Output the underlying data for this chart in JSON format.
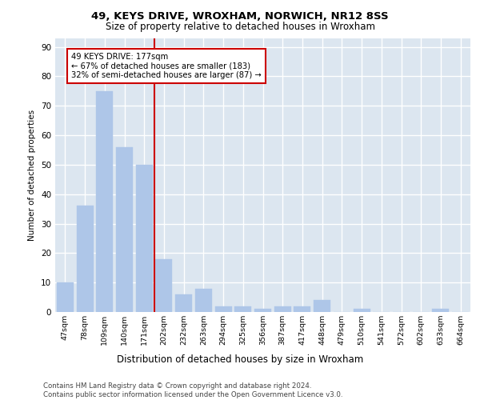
{
  "title1": "49, KEYS DRIVE, WROXHAM, NORWICH, NR12 8SS",
  "title2": "Size of property relative to detached houses in Wroxham",
  "xlabel": "Distribution of detached houses by size in Wroxham",
  "ylabel": "Number of detached properties",
  "bar_labels": [
    "47sqm",
    "78sqm",
    "109sqm",
    "140sqm",
    "171sqm",
    "202sqm",
    "232sqm",
    "263sqm",
    "294sqm",
    "325sqm",
    "356sqm",
    "387sqm",
    "417sqm",
    "448sqm",
    "479sqm",
    "510sqm",
    "541sqm",
    "572sqm",
    "602sqm",
    "633sqm",
    "664sqm"
  ],
  "bar_values": [
    10,
    36,
    75,
    56,
    50,
    18,
    6,
    8,
    2,
    2,
    1,
    2,
    2,
    4,
    0,
    1,
    0,
    0,
    0,
    1,
    0
  ],
  "bar_color": "#aec6e8",
  "bar_edge_color": "#aec6e8",
  "background_color": "#dce6f0",
  "grid_color": "#ffffff",
  "vline_x": 4.5,
  "vline_color": "#cc0000",
  "annotation_line1": "49 KEYS DRIVE: 177sqm",
  "annotation_line2": "← 67% of detached houses are smaller (183)",
  "annotation_line3": "32% of semi-detached houses are larger (87) →",
  "annotation_box_color": "#ffffff",
  "annotation_box_edge": "#cc0000",
  "ylim": [
    0,
    93
  ],
  "yticks": [
    0,
    10,
    20,
    30,
    40,
    50,
    60,
    70,
    80,
    90
  ]
}
